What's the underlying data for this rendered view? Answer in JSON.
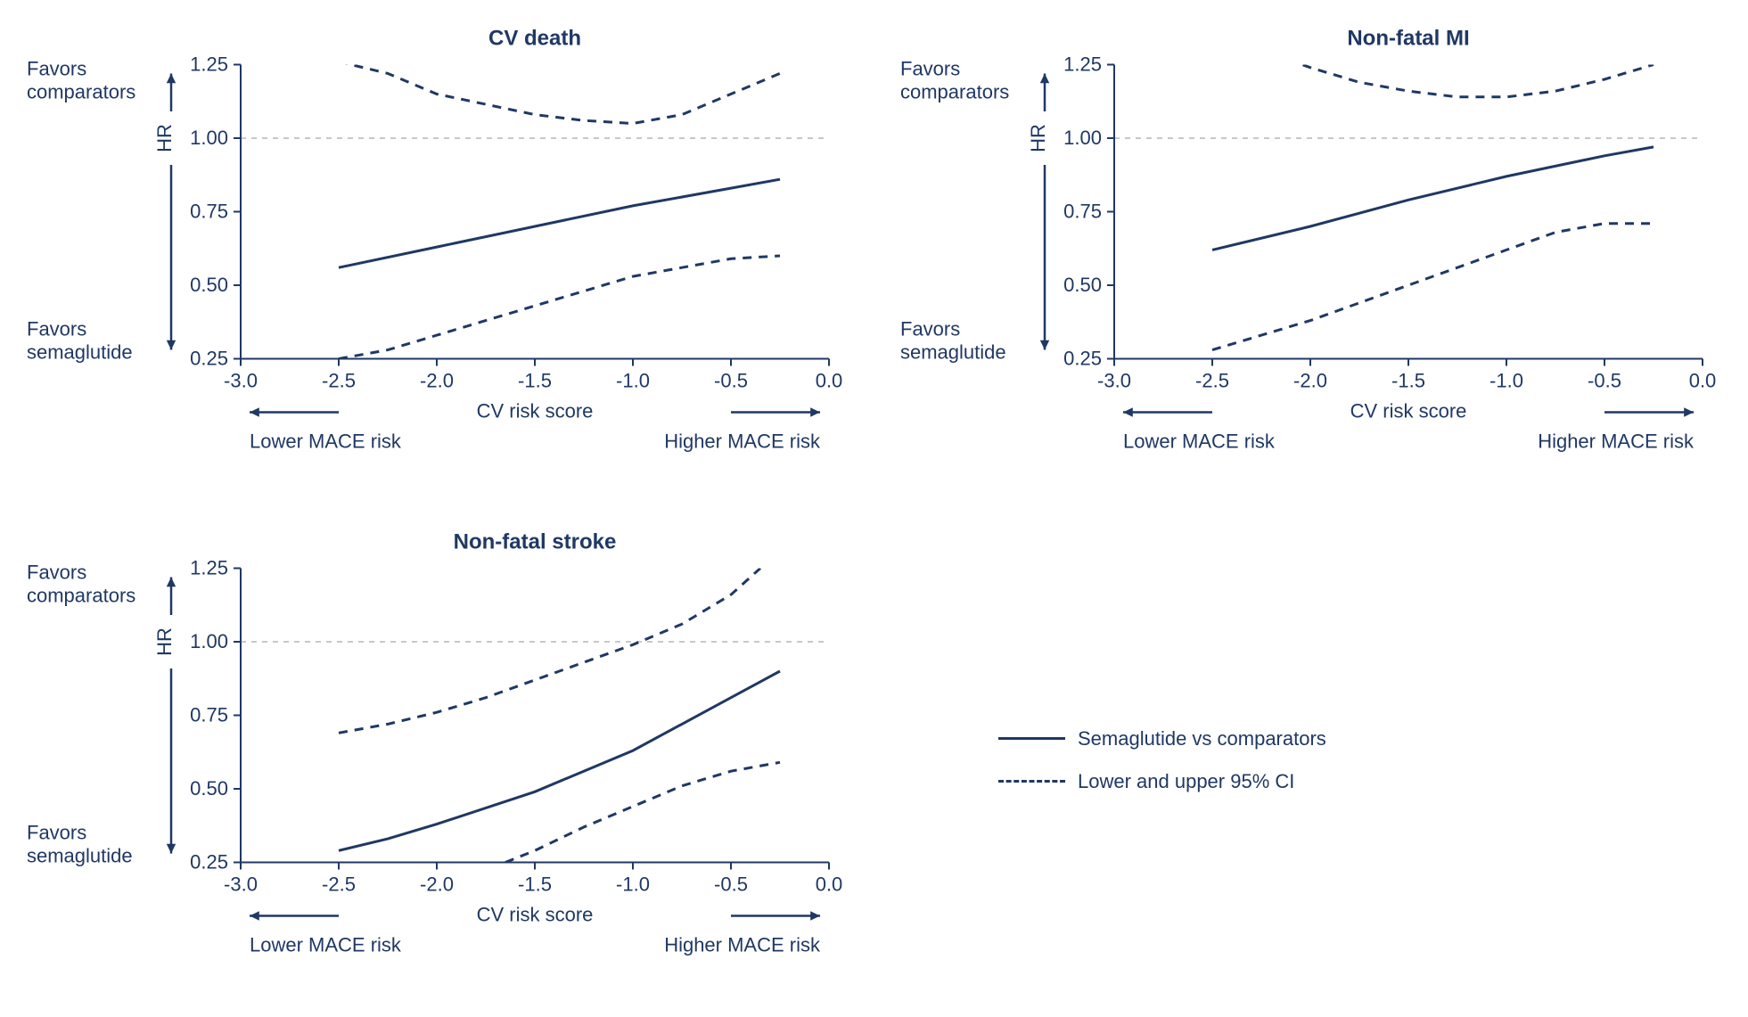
{
  "colors": {
    "line": "#1f3864",
    "axis": "#1f3864",
    "refline": "#c8c8c8",
    "bg": "#ffffff",
    "text": "#1f3864"
  },
  "typography": {
    "title_fontsize": 24,
    "title_weight": "bold",
    "tick_fontsize": 22,
    "label_fontsize": 22,
    "annot_fontsize": 22
  },
  "axis": {
    "xlim": [
      -3.0,
      0.0
    ],
    "xticks": [
      -3.0,
      -2.5,
      -2.0,
      -1.5,
      -1.0,
      -0.5,
      0.0
    ],
    "xtick_labels": [
      "-3.0",
      "-2.5",
      "-2.0",
      "-1.5",
      "-1.0",
      "-0.5",
      "0.0"
    ],
    "xlabel": "CV risk score",
    "x_sub_left": "Lower MACE risk",
    "x_sub_right": "Higher MACE risk",
    "ylim": [
      0.25,
      1.25
    ],
    "yticks": [
      0.25,
      0.5,
      0.75,
      1.0,
      1.25
    ],
    "ytick_labels": [
      "0.25",
      "0.50",
      "0.75",
      "1.00",
      "1.25"
    ],
    "ylabel": "HR",
    "y_annot_top": "Favors\ncomparators",
    "y_annot_bottom": "Favors\nsemaglutide",
    "refline_y": 1.0,
    "line_width_main": 3,
    "line_width_ci": 3,
    "dash_pattern": "10,8"
  },
  "legend": {
    "items": [
      {
        "style": "solid",
        "label": "Semaglutide vs comparators"
      },
      {
        "style": "dashed",
        "label": "Lower and upper 95% CI"
      }
    ]
  },
  "panels": [
    {
      "id": "cv-death",
      "title": "CV death",
      "main": [
        [
          -2.5,
          0.56
        ],
        [
          -2.0,
          0.63
        ],
        [
          -1.5,
          0.7
        ],
        [
          -1.0,
          0.77
        ],
        [
          -0.5,
          0.83
        ],
        [
          -0.25,
          0.86
        ]
      ],
      "lower": [
        [
          -2.5,
          0.25
        ],
        [
          -2.25,
          0.28
        ],
        [
          -2.0,
          0.33
        ],
        [
          -1.5,
          0.43
        ],
        [
          -1.0,
          0.53
        ],
        [
          -0.5,
          0.59
        ],
        [
          -0.25,
          0.6
        ]
      ],
      "upper": [
        [
          -2.5,
          1.26
        ],
        [
          -2.25,
          1.22
        ],
        [
          -2.0,
          1.15
        ],
        [
          -1.5,
          1.08
        ],
        [
          -1.25,
          1.06
        ],
        [
          -1.0,
          1.05
        ],
        [
          -0.75,
          1.08
        ],
        [
          -0.5,
          1.15
        ],
        [
          -0.25,
          1.22
        ]
      ]
    },
    {
      "id": "nonfatal-mi",
      "title": "Non-fatal MI",
      "main": [
        [
          -2.5,
          0.62
        ],
        [
          -2.0,
          0.7
        ],
        [
          -1.5,
          0.79
        ],
        [
          -1.0,
          0.87
        ],
        [
          -0.5,
          0.94
        ],
        [
          -0.25,
          0.97
        ]
      ],
      "lower": [
        [
          -2.5,
          0.28
        ],
        [
          -2.0,
          0.38
        ],
        [
          -1.5,
          0.5
        ],
        [
          -1.0,
          0.62
        ],
        [
          -0.75,
          0.68
        ],
        [
          -0.5,
          0.71
        ],
        [
          -0.25,
          0.71
        ]
      ],
      "upper": [
        [
          -2.5,
          1.36
        ],
        [
          -2.25,
          1.3
        ],
        [
          -2.0,
          1.24
        ],
        [
          -1.75,
          1.19
        ],
        [
          -1.5,
          1.16
        ],
        [
          -1.25,
          1.14
        ],
        [
          -1.0,
          1.14
        ],
        [
          -0.75,
          1.16
        ],
        [
          -0.5,
          1.2
        ],
        [
          -0.25,
          1.25
        ]
      ]
    },
    {
      "id": "nonfatal-stroke",
      "title": "Non-fatal stroke",
      "main": [
        [
          -2.5,
          0.29
        ],
        [
          -2.25,
          0.33
        ],
        [
          -2.0,
          0.38
        ],
        [
          -1.5,
          0.49
        ],
        [
          -1.0,
          0.63
        ],
        [
          -0.75,
          0.72
        ],
        [
          -0.5,
          0.81
        ],
        [
          -0.25,
          0.9
        ]
      ],
      "lower": [
        [
          -1.65,
          0.25
        ],
        [
          -1.5,
          0.29
        ],
        [
          -1.25,
          0.37
        ],
        [
          -1.0,
          0.44
        ],
        [
          -0.75,
          0.51
        ],
        [
          -0.5,
          0.56
        ],
        [
          -0.25,
          0.59
        ]
      ],
      "upper": [
        [
          -2.5,
          0.69
        ],
        [
          -2.25,
          0.72
        ],
        [
          -2.0,
          0.76
        ],
        [
          -1.75,
          0.81
        ],
        [
          -1.5,
          0.87
        ],
        [
          -1.25,
          0.93
        ],
        [
          -1.0,
          0.99
        ],
        [
          -0.75,
          1.06
        ],
        [
          -0.5,
          1.16
        ],
        [
          -0.35,
          1.25
        ]
      ]
    }
  ]
}
